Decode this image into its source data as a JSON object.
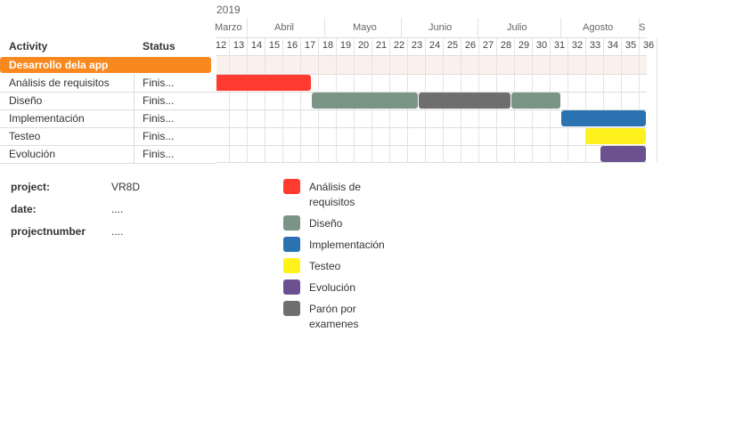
{
  "table": {
    "col_activity": "Activity",
    "col_status": "Status",
    "group": "Desarrollo dela app",
    "rows": [
      {
        "activity": "Análisis de requisitos",
        "status": "Finis..."
      },
      {
        "activity": "Diseño",
        "status": "Finis..."
      },
      {
        "activity": "Implementación",
        "status": "Finis..."
      },
      {
        "activity": "Testeo",
        "status": "Finis..."
      },
      {
        "activity": "Evolución",
        "status": "Finis..."
      }
    ]
  },
  "timeline": {
    "year": "2019",
    "months": [
      "Marzo",
      "Abril",
      "Mayo",
      "Junio",
      "Julio",
      "Agosto",
      "S"
    ],
    "weeks": [
      "12",
      "13",
      "14",
      "15",
      "16",
      "17",
      "18",
      "19",
      "20",
      "21",
      "22",
      "23",
      "24",
      "25",
      "26",
      "27",
      "28",
      "29",
      "30",
      "31",
      "32",
      "33",
      "34",
      "35",
      "36"
    ]
  },
  "bars": [
    {
      "task": "Análisis de requisitos",
      "start_week": 12,
      "end_week": 17,
      "color": "#ff3b30"
    },
    {
      "task": "Diseño",
      "start_week": 18,
      "end_week": 23,
      "color": "#7a9585"
    },
    {
      "task": "Parón por examenes",
      "start_week": 24,
      "end_week": 28,
      "color": "#6e6e6e"
    },
    {
      "task": "Diseño",
      "start_week": 29,
      "end_week": 31,
      "color": "#7a9585"
    },
    {
      "task": "Implementación",
      "start_week": 32,
      "end_week": 36,
      "color": "#2a72b0"
    },
    {
      "task": "Testeo",
      "start_week": 33,
      "end_week": 36,
      "color": "#fff21c"
    },
    {
      "task": "Evolución",
      "start_week": 34,
      "end_week": 36,
      "color": "#6b5190"
    }
  ],
  "meta": {
    "project_label": "project:",
    "project_value": "VR8D",
    "date_label": "date:",
    "date_value": "....",
    "number_label": "projectnumber",
    "number_value": "...."
  },
  "legend": [
    {
      "label": "Análisis de requisitos",
      "color": "#ff3b30"
    },
    {
      "label": "Diseño",
      "color": "#7a9585"
    },
    {
      "label": "Implementación",
      "color": "#2a72b0"
    },
    {
      "label": "Testeo",
      "color": "#fff21c"
    },
    {
      "label": "Evolución",
      "color": "#6b5190"
    },
    {
      "label": "Parón por examenes",
      "color": "#6e6e6e"
    }
  ]
}
